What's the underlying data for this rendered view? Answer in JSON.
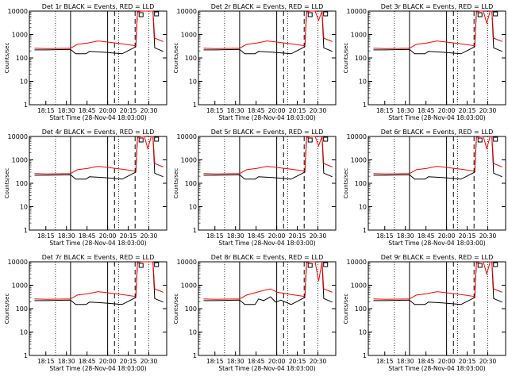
{
  "chart_data": [
    {
      "type": "line",
      "title": "Det 1r BLACK = Events, RED = LLD",
      "xlabel": "Start Time (28-Nov-04 18:03:00)",
      "ylabel": "Counts/sec",
      "yscale": "log",
      "ylim": [
        1,
        10000
      ],
      "xlim": [
        "18:03",
        "20:40"
      ],
      "x_ticks": [
        "18:15",
        "18:30",
        "18:45",
        "20:00",
        "20:15",
        "20:30"
      ],
      "y_ticks": [
        "1",
        "10",
        "100",
        "1000",
        "10000"
      ],
      "series": [
        {
          "color": "#000000",
          "x": [
            3,
            10,
            24,
            25,
            27,
            33,
            35,
            43,
            54,
            62,
            63,
            65,
            72,
            73,
            78
          ],
          "y": [
            220,
            220,
            230,
            200,
            150,
            150,
            190,
            175,
            150,
            300,
            9000,
            10000,
            10000,
            270,
            190
          ]
        },
        {
          "color": "#ff0000",
          "x": [
            3,
            10,
            24,
            28,
            34,
            40,
            45,
            54,
            62,
            63,
            65,
            72,
            73,
            78
          ],
          "y": [
            260,
            250,
            260,
            380,
            430,
            530,
            480,
            400,
            330,
            9000,
            10000,
            10000,
            700,
            500
          ]
        }
      ]
    },
    {
      "type": "line",
      "title": "Det 2r BLACK = Events, RED = LLD",
      "xlabel": "Start Time (28-Nov-04 18:03:00)",
      "ylabel": "Counts/sec",
      "yscale": "log",
      "ylim": [
        1,
        10000
      ],
      "xlim": [
        "18:03",
        "20:40"
      ],
      "x_ticks": [
        "18:15",
        "18:30",
        "18:45",
        "20:00",
        "20:15",
        "20:30"
      ],
      "y_ticks": [
        "1",
        "10",
        "100",
        "1000",
        "10000"
      ],
      "series": [
        {
          "color": "#000000",
          "x": [
            3,
            10,
            24,
            25,
            27,
            33,
            35,
            43,
            54,
            62,
            63,
            65,
            72,
            73,
            78
          ],
          "y": [
            220,
            220,
            230,
            200,
            150,
            150,
            190,
            175,
            150,
            300,
            9000,
            10000,
            10000,
            270,
            190
          ]
        },
        {
          "color": "#ff0000",
          "x": [
            3,
            10,
            24,
            28,
            34,
            40,
            45,
            54,
            62,
            63,
            65,
            68,
            70,
            72,
            73,
            78
          ],
          "y": [
            260,
            250,
            260,
            380,
            430,
            530,
            480,
            400,
            330,
            9000,
            10000,
            10000,
            4000,
            10000,
            700,
            500
          ]
        }
      ]
    },
    {
      "type": "line",
      "title": "Det 3r BLACK = Events, RED = LLD",
      "xlabel": "Start Time (28-Nov-04 18:03:00)",
      "ylabel": "Counts/sec",
      "yscale": "log",
      "ylim": [
        1,
        10000
      ],
      "xlim": [
        "18:03",
        "20:40"
      ],
      "x_ticks": [
        "18:15",
        "18:30",
        "18:45",
        "20:00",
        "20:15",
        "20:30"
      ],
      "y_ticks": [
        "1",
        "10",
        "100",
        "1000",
        "10000"
      ],
      "series": [
        {
          "color": "#000000",
          "x": [
            3,
            10,
            24,
            25,
            27,
            33,
            35,
            43,
            54,
            62,
            63,
            65,
            72,
            73,
            78
          ],
          "y": [
            220,
            220,
            230,
            200,
            150,
            150,
            190,
            175,
            150,
            300,
            9000,
            10000,
            10000,
            270,
            190
          ]
        },
        {
          "color": "#ff0000",
          "x": [
            3,
            10,
            24,
            28,
            34,
            40,
            45,
            54,
            62,
            63,
            65,
            67,
            69,
            71,
            72,
            73,
            78
          ],
          "y": [
            260,
            250,
            260,
            380,
            430,
            530,
            480,
            400,
            330,
            9000,
            10000,
            10000,
            3000,
            10000,
            10000,
            700,
            500
          ]
        }
      ]
    },
    {
      "type": "line",
      "title": "Det 4r BLACK = Events, RED = LLD",
      "xlabel": "Start Time (28-Nov-04 18:03:00)",
      "ylabel": "Counts/sec",
      "yscale": "log",
      "ylim": [
        1,
        10000
      ],
      "xlim": [
        "18:03",
        "20:40"
      ],
      "x_ticks": [
        "18:15",
        "18:30",
        "18:45",
        "20:00",
        "20:15",
        "20:30"
      ],
      "y_ticks": [
        "1",
        "10",
        "100",
        "1000",
        "10000"
      ],
      "series": [
        {
          "color": "#000000",
          "x": [
            3,
            10,
            24,
            25,
            27,
            33,
            35,
            43,
            54,
            62,
            63,
            65,
            72,
            73,
            78
          ],
          "y": [
            220,
            220,
            230,
            200,
            150,
            150,
            190,
            175,
            150,
            300,
            9000,
            10000,
            10000,
            270,
            190
          ]
        },
        {
          "color": "#ff0000",
          "x": [
            3,
            10,
            24,
            28,
            34,
            40,
            45,
            54,
            62,
            63,
            65,
            67,
            69,
            71,
            72,
            73,
            78
          ],
          "y": [
            260,
            250,
            260,
            380,
            430,
            530,
            480,
            400,
            330,
            9000,
            10000,
            10000,
            3000,
            10000,
            10000,
            700,
            500
          ]
        }
      ]
    },
    {
      "type": "line",
      "title": "Det 5r BLACK = Events, RED = LLD",
      "xlabel": "Start Time (28-Nov-04 18:03:00)",
      "ylabel": "Counts/sec",
      "yscale": "log",
      "ylim": [
        1,
        10000
      ],
      "xlim": [
        "18:03",
        "20:40"
      ],
      "x_ticks": [
        "18:15",
        "18:30",
        "18:45",
        "20:00",
        "20:15",
        "20:30"
      ],
      "y_ticks": [
        "1",
        "10",
        "100",
        "1000",
        "10000"
      ],
      "series": [
        {
          "color": "#000000",
          "x": [
            3,
            10,
            24,
            25,
            27,
            33,
            35,
            43,
            54,
            62,
            63,
            65,
            72,
            73,
            78
          ],
          "y": [
            220,
            220,
            230,
            200,
            150,
            150,
            190,
            175,
            150,
            300,
            9000,
            10000,
            10000,
            270,
            190
          ]
        },
        {
          "color": "#ff0000",
          "x": [
            3,
            10,
            24,
            28,
            34,
            40,
            45,
            54,
            62,
            63,
            65,
            68,
            70,
            72,
            73,
            78
          ],
          "y": [
            260,
            250,
            260,
            380,
            430,
            530,
            480,
            400,
            330,
            9000,
            10000,
            10000,
            4000,
            10000,
            700,
            500
          ]
        }
      ]
    },
    {
      "type": "line",
      "title": "Det 6r BLACK = Events, RED = LLD",
      "xlabel": "Start Time (28-Nov-04 18:03:00)",
      "ylabel": "Counts/sec",
      "yscale": "log",
      "ylim": [
        1,
        10000
      ],
      "xlim": [
        "18:03",
        "20:40"
      ],
      "x_ticks": [
        "18:15",
        "18:30",
        "18:45",
        "20:00",
        "20:15",
        "20:30"
      ],
      "y_ticks": [
        "1",
        "10",
        "100",
        "1000",
        "10000"
      ],
      "series": [
        {
          "color": "#000000",
          "x": [
            3,
            10,
            24,
            25,
            27,
            33,
            35,
            43,
            54,
            62,
            63,
            65,
            72,
            73,
            78
          ],
          "y": [
            220,
            220,
            230,
            200,
            150,
            150,
            190,
            175,
            150,
            300,
            9000,
            10000,
            10000,
            270,
            190
          ]
        },
        {
          "color": "#ff0000",
          "x": [
            3,
            10,
            24,
            28,
            34,
            40,
            45,
            54,
            62,
            63,
            65,
            67,
            69,
            71,
            72,
            73,
            78
          ],
          "y": [
            260,
            250,
            260,
            380,
            430,
            530,
            480,
            400,
            330,
            9000,
            10000,
            10000,
            3000,
            10000,
            10000,
            700,
            500
          ]
        }
      ]
    },
    {
      "type": "line",
      "title": "Det 7r BLACK = Events, RED = LLD",
      "xlabel": "Start Time (28-Nov-04 18:03:00)",
      "ylabel": "Counts/sec",
      "yscale": "log",
      "ylim": [
        1,
        10000
      ],
      "xlim": [
        "18:03",
        "20:40"
      ],
      "x_ticks": [
        "18:15",
        "18:30",
        "18:45",
        "20:00",
        "20:15",
        "20:30"
      ],
      "y_ticks": [
        "1",
        "10",
        "100",
        "1000",
        "10000"
      ],
      "series": [
        {
          "color": "#000000",
          "x": [
            3,
            10,
            24,
            25,
            27,
            33,
            35,
            43,
            54,
            62,
            63,
            65,
            72,
            73,
            78
          ],
          "y": [
            220,
            220,
            230,
            200,
            150,
            150,
            190,
            175,
            150,
            300,
            9000,
            10000,
            10000,
            270,
            190
          ]
        },
        {
          "color": "#ff0000",
          "x": [
            3,
            10,
            24,
            28,
            34,
            40,
            45,
            54,
            62,
            63,
            65,
            72,
            73,
            78
          ],
          "y": [
            260,
            250,
            260,
            380,
            430,
            530,
            480,
            400,
            330,
            9000,
            10000,
            10000,
            700,
            500
          ]
        }
      ]
    },
    {
      "type": "line",
      "title": "Det 8r BLACK = Events, RED = LLD",
      "xlabel": "Start Time (28-Nov-04 18:03:00)",
      "ylabel": "Counts/sec",
      "yscale": "log",
      "ylim": [
        1,
        10000
      ],
      "xlim": [
        "18:03",
        "20:40"
      ],
      "x_ticks": [
        "18:15",
        "18:30",
        "18:45",
        "20:00",
        "20:15",
        "20:30"
      ],
      "y_ticks": [
        "1",
        "10",
        "100",
        "1000",
        "10000"
      ],
      "series": [
        {
          "color": "#000000",
          "x": [
            3,
            10,
            24,
            25,
            27,
            33,
            35,
            38,
            42,
            45,
            48,
            54,
            62,
            63,
            65,
            72,
            73,
            78
          ],
          "y": [
            220,
            220,
            230,
            200,
            150,
            150,
            260,
            220,
            320,
            190,
            230,
            150,
            300,
            9000,
            10000,
            10000,
            270,
            190
          ]
        },
        {
          "color": "#ff0000",
          "x": [
            3,
            10,
            24,
            28,
            34,
            38,
            42,
            46,
            50,
            54,
            62,
            63,
            65,
            68,
            70,
            72,
            73,
            78
          ],
          "y": [
            260,
            250,
            260,
            380,
            500,
            600,
            700,
            500,
            450,
            400,
            330,
            9000,
            10000,
            10000,
            1500,
            10000,
            700,
            500
          ]
        }
      ]
    },
    {
      "type": "line",
      "title": "Det 9r BLACK = Events, RED = LLD",
      "xlabel": "Start Time (28-Nov-04 18:03:00)",
      "ylabel": "Counts/sec",
      "yscale": "log",
      "ylim": [
        1,
        10000
      ],
      "xlim": [
        "18:03",
        "20:40"
      ],
      "x_ticks": [
        "18:15",
        "18:30",
        "18:45",
        "20:00",
        "20:15",
        "20:30"
      ],
      "y_ticks": [
        "1",
        "10",
        "100",
        "1000",
        "10000"
      ],
      "series": [
        {
          "color": "#000000",
          "x": [
            3,
            10,
            24,
            25,
            27,
            33,
            35,
            43,
            54,
            62,
            63,
            65,
            72,
            73,
            78
          ],
          "y": [
            220,
            220,
            230,
            200,
            150,
            150,
            190,
            175,
            150,
            300,
            9000,
            10000,
            10000,
            270,
            190
          ]
        },
        {
          "color": "#ff0000",
          "x": [
            3,
            10,
            24,
            28,
            34,
            40,
            45,
            54,
            62,
            63,
            65,
            67,
            69,
            71,
            72,
            73,
            78
          ],
          "y": [
            260,
            250,
            260,
            380,
            430,
            530,
            480,
            400,
            330,
            9000,
            10000,
            10000,
            3000,
            10000,
            10000,
            700,
            500
          ]
        }
      ]
    }
  ]
}
